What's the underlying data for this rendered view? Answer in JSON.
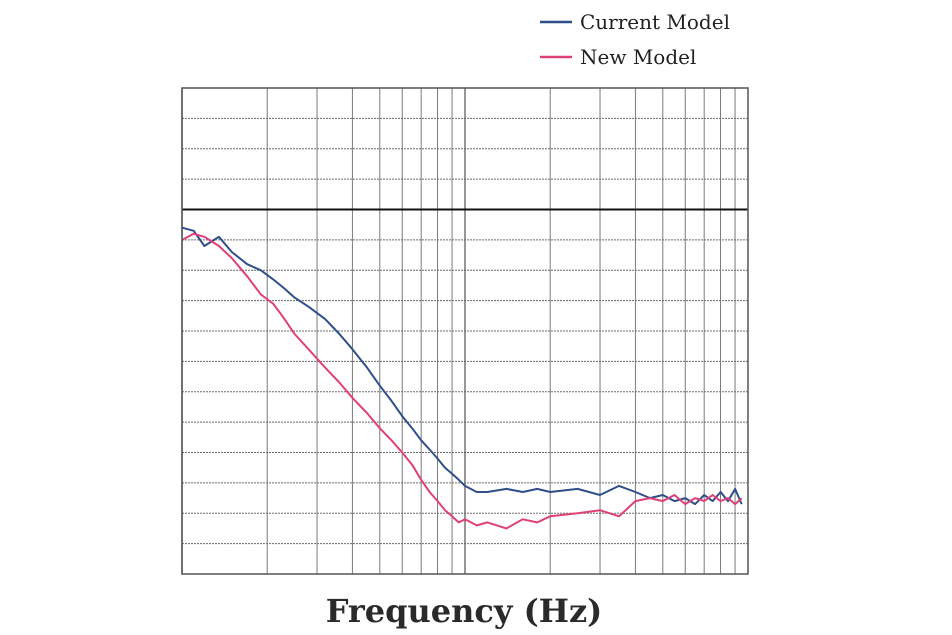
{
  "colors": {
    "current_model": "#2f4f8a",
    "new_model": "#e0407a",
    "grid": "#6b6b6b",
    "reference_line": "#111111"
  },
  "chart_data": {
    "type": "line",
    "title": "",
    "xlabel": "Frequency (Hz)",
    "ylabel": "",
    "x_scale": "log",
    "xlim": [
      1,
      100
    ],
    "ylim": [
      -16,
      0
    ],
    "reference_line_y": -4,
    "grid": true,
    "legend_position": "top-right",
    "series": [
      {
        "name": "Current Model",
        "color": "#2f4f8a",
        "x": [
          1.0,
          1.1,
          1.2,
          1.35,
          1.5,
          1.7,
          1.9,
          2.1,
          2.3,
          2.5,
          2.8,
          3.2,
          3.6,
          4.0,
          4.5,
          5.0,
          5.5,
          6.0,
          6.5,
          7.0,
          7.5,
          8.0,
          8.5,
          9.0,
          9.5,
          10,
          11,
          12,
          14,
          16,
          18,
          20,
          25,
          30,
          35,
          40,
          45,
          50,
          55,
          60,
          65,
          70,
          75,
          80,
          85,
          90,
          95
        ],
        "y": [
          -4.6,
          -4.7,
          -5.2,
          -4.9,
          -5.4,
          -5.8,
          -6.0,
          -6.3,
          -6.6,
          -6.9,
          -7.2,
          -7.6,
          -8.1,
          -8.6,
          -9.2,
          -9.8,
          -10.3,
          -10.8,
          -11.2,
          -11.6,
          -11.9,
          -12.2,
          -12.5,
          -12.7,
          -12.9,
          -13.1,
          -13.3,
          -13.3,
          -13.2,
          -13.3,
          -13.2,
          -13.3,
          -13.2,
          -13.4,
          -13.1,
          -13.3,
          -13.5,
          -13.4,
          -13.6,
          -13.5,
          -13.7,
          -13.4,
          -13.6,
          -13.3,
          -13.6,
          -13.2,
          -13.7
        ]
      },
      {
        "name": "New Model",
        "color": "#e0407a",
        "x": [
          1.0,
          1.1,
          1.2,
          1.35,
          1.5,
          1.7,
          1.9,
          2.1,
          2.3,
          2.5,
          2.8,
          3.2,
          3.6,
          4.0,
          4.5,
          5.0,
          5.5,
          6.0,
          6.5,
          7.0,
          7.5,
          8.0,
          8.5,
          9.0,
          9.5,
          10,
          11,
          12,
          14,
          16,
          18,
          20,
          25,
          30,
          35,
          40,
          45,
          50,
          55,
          60,
          65,
          70,
          75,
          80,
          85,
          90,
          95
        ],
        "y": [
          -5.0,
          -4.8,
          -4.9,
          -5.2,
          -5.6,
          -6.2,
          -6.8,
          -7.1,
          -7.6,
          -8.1,
          -8.6,
          -9.2,
          -9.7,
          -10.2,
          -10.7,
          -11.2,
          -11.6,
          -12.0,
          -12.4,
          -12.9,
          -13.3,
          -13.6,
          -13.9,
          -14.1,
          -14.3,
          -14.2,
          -14.4,
          -14.3,
          -14.5,
          -14.2,
          -14.3,
          -14.1,
          -14.0,
          -13.9,
          -14.1,
          -13.6,
          -13.5,
          -13.6,
          -13.4,
          -13.7,
          -13.5,
          -13.6,
          -13.4,
          -13.6,
          -13.5,
          -13.7,
          -13.5
        ]
      }
    ]
  }
}
